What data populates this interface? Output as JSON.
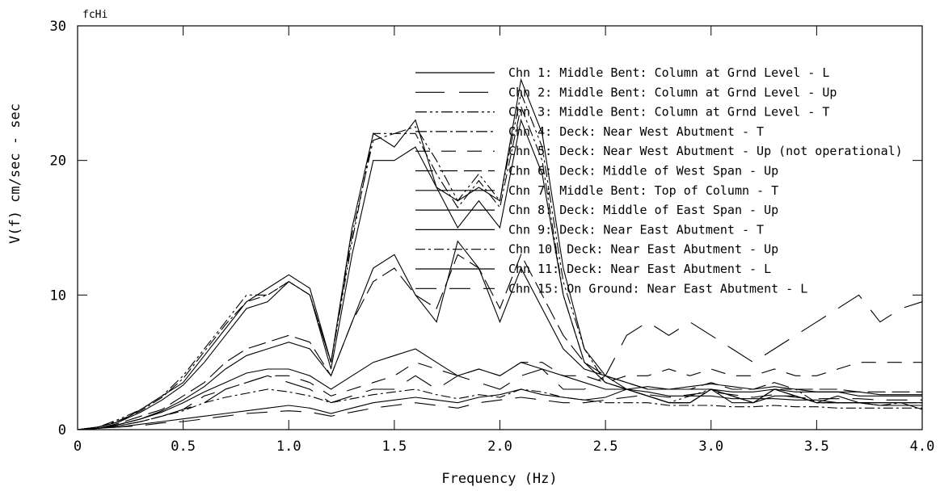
{
  "chart_data": {
    "type": "line",
    "corner_label": "fcHi",
    "xlabel": "Frequency (Hz)",
    "ylabel": "V(f)    cm/sec - sec",
    "xlim": [
      0,
      4.0
    ],
    "ylim": [
      0,
      30
    ],
    "x_ticks": [
      "0",
      "0.5",
      "1.0",
      "1.5",
      "2.0",
      "2.5",
      "3.0",
      "3.5",
      "4.0"
    ],
    "y_ticks": [
      "0",
      "10",
      "20",
      "30"
    ],
    "grid": false,
    "legend_position": "top-right",
    "x": [
      0.0,
      0.1,
      0.2,
      0.3,
      0.4,
      0.5,
      0.6,
      0.7,
      0.8,
      0.9,
      1.0,
      1.1,
      1.2,
      1.3,
      1.4,
      1.5,
      1.6,
      1.7,
      1.8,
      1.9,
      2.0,
      2.1,
      2.2,
      2.3,
      2.4,
      2.5,
      2.6,
      2.7,
      2.8,
      2.9,
      3.0,
      3.1,
      3.2,
      3.3,
      3.4,
      3.5,
      3.6,
      3.7,
      3.8,
      3.9,
      4.0
    ],
    "series": [
      {
        "name": "Chn 1: Middle Bent: Column at Grnd Level - L",
        "dash": "",
        "values": [
          0,
          0.2,
          0.6,
          1.5,
          2.5,
          3.5,
          5.5,
          7.5,
          9.5,
          10.5,
          11.5,
          10.5,
          5,
          15,
          22,
          21,
          23,
          18,
          17,
          18,
          17,
          26,
          22,
          12,
          6,
          4,
          3,
          2.5,
          2,
          2,
          3,
          2.5,
          2,
          3,
          2.5,
          2,
          2.5,
          2,
          2,
          2,
          1.5
        ]
      },
      {
        "name": "Chn 2: Middle Bent: Column at Grnd Level - Up",
        "dash": "36,18",
        "values": [
          0,
          0.1,
          0.3,
          0.6,
          1,
          1.5,
          2,
          3,
          3.5,
          4,
          3.5,
          3,
          2,
          2.5,
          3,
          3,
          4,
          3,
          4,
          3.5,
          3,
          4,
          4.5,
          3,
          3,
          4,
          7,
          8,
          7,
          8,
          7,
          6,
          5,
          6,
          7,
          8,
          9,
          10,
          8,
          9,
          9.5
        ]
      },
      {
        "name": "Chn 3: Middle Bent: Column at Grnd Level - T",
        "dash": "14,4,3,4,3,4",
        "values": [
          0,
          0.2,
          0.8,
          1.5,
          2.5,
          4,
          6,
          8,
          10,
          10,
          11,
          10,
          5,
          14,
          22,
          22,
          22.5,
          20,
          17,
          19,
          17,
          25,
          21,
          11,
          6,
          3.5,
          3,
          2.5,
          2,
          2.5,
          3,
          2.5,
          2,
          3,
          3,
          2,
          2,
          2,
          1.8,
          2,
          2
        ]
      },
      {
        "name": "Chn 4: Deck: Near West Abutment - T",
        "dash": "14,4,3,4",
        "values": [
          0,
          0.2,
          0.7,
          1.4,
          2.4,
          3.8,
          5.8,
          7.8,
          9.5,
          10,
          11,
          10,
          5,
          14.5,
          21.5,
          22,
          22,
          19,
          16.5,
          18.5,
          16.5,
          24,
          20,
          10,
          5,
          3.5,
          3,
          2.5,
          2,
          2,
          3,
          2.5,
          2,
          3,
          2.5,
          2,
          2,
          2,
          1.8,
          1.8,
          1.8
        ]
      },
      {
        "name": "Chn 5: Deck: Near West Abutment - Up (not operational)",
        "dash": "18,14",
        "values": [
          0,
          0.1,
          0.3,
          0.6,
          1,
          1.5,
          2.5,
          3,
          3.5,
          4,
          4,
          3.5,
          2.5,
          3,
          3.5,
          4,
          5,
          4.5,
          4,
          4.5,
          4,
          5,
          5,
          4,
          4,
          3.5,
          4,
          4,
          4.5,
          4,
          4.5,
          4,
          4,
          4.5,
          4,
          4,
          4.5,
          5,
          5,
          5,
          5
        ]
      },
      {
        "name": "Chn 6: Deck: Middle of West Span - Up",
        "dash": "22,8",
        "values": [
          0,
          0.1,
          0.5,
          1,
          1.5,
          2.5,
          3.5,
          5,
          6,
          6.5,
          7,
          6.5,
          4,
          8,
          11,
          12,
          10,
          9,
          13,
          12,
          9,
          13,
          10,
          7,
          5,
          4,
          3.5,
          3,
          3,
          3,
          3.5,
          3,
          3,
          3.5,
          3,
          3,
          3,
          2.8,
          2.8,
          2.8,
          2.8
        ]
      },
      {
        "name": "Chn 7: Middle Bent: Top of Column - T",
        "dash": "",
        "values": [
          0,
          0.2,
          0.6,
          1.3,
          2.2,
          3.3,
          5,
          7,
          9,
          9.5,
          11,
          10,
          4.5,
          13,
          20,
          20,
          21,
          18,
          15,
          17,
          15,
          23,
          19,
          10,
          5,
          3.5,
          3,
          2.5,
          2,
          2,
          3,
          2,
          2,
          2.5,
          2.5,
          2,
          2,
          2,
          1.8,
          1.8,
          1.8
        ]
      },
      {
        "name": "Chn 8: Deck: Middle of East Span - Up",
        "dash": "",
        "values": [
          0,
          0.1,
          0.4,
          0.8,
          1.4,
          2.2,
          3.2,
          4.5,
          5.5,
          6,
          6.5,
          6,
          4,
          8,
          12,
          13,
          10,
          8,
          14,
          12,
          8,
          12,
          9,
          6,
          4.5,
          4,
          3.5,
          3,
          3,
          3,
          3,
          2.8,
          2.8,
          3,
          2.8,
          2.8,
          2.8,
          2.5,
          2.5,
          2.5,
          2.5
        ]
      },
      {
        "name": "Chn 9: Deck: Near East Abutment - T",
        "dash": "",
        "values": [
          0,
          0.1,
          0.4,
          0.8,
          1.3,
          2,
          2.8,
          3.5,
          4.2,
          4.5,
          4.5,
          4,
          3,
          4,
          5,
          5.5,
          6,
          5,
          4,
          4.5,
          4,
          5,
          4.5,
          4,
          3.5,
          3,
          3,
          2.8,
          2.5,
          2.5,
          2.5,
          2.3,
          2.3,
          2.3,
          2.2,
          2.2,
          2,
          2,
          2,
          2,
          2
        ]
      },
      {
        "name": "Chn 10: Deck: Near East Abutment - Up",
        "dash": "12,4,3,4",
        "values": [
          0,
          0.1,
          0.3,
          0.6,
          1,
          1.4,
          2,
          2.4,
          2.7,
          3,
          2.8,
          2.5,
          2,
          2.3,
          2.6,
          2.8,
          3,
          2.6,
          2.3,
          2.6,
          2.4,
          3,
          2.8,
          2.4,
          2.2,
          2,
          2,
          2,
          1.8,
          1.8,
          1.8,
          1.7,
          1.7,
          1.8,
          1.7,
          1.7,
          1.6,
          1.6,
          1.6,
          1.6,
          1.6
        ]
      },
      {
        "name": "Chn 11: Deck: Near East Abutment - L",
        "dash": "",
        "values": [
          0,
          0.1,
          0.2,
          0.4,
          0.6,
          0.8,
          1,
          1.2,
          1.4,
          1.6,
          1.8,
          1.6,
          1.2,
          1.6,
          2,
          2.2,
          2.4,
          2.2,
          2,
          2.4,
          2.6,
          3,
          2.6,
          2.4,
          2.2,
          2.4,
          3,
          3.2,
          3,
          3.2,
          3.4,
          3.2,
          3,
          3.2,
          3,
          2.8,
          2.8,
          2.8,
          2.6,
          2.6,
          2.6
        ]
      },
      {
        "name": "Chn 15: On Ground: Near East Abutment - L",
        "dash": "26,16",
        "values": [
          0,
          0.1,
          0.2,
          0.3,
          0.5,
          0.6,
          0.8,
          1,
          1.2,
          1.3,
          1.4,
          1.3,
          1,
          1.3,
          1.6,
          1.8,
          2,
          1.8,
          1.6,
          2,
          2.2,
          2.4,
          2.2,
          2,
          2,
          2.2,
          2.4,
          2.6,
          2.4,
          2.6,
          2.8,
          2.6,
          2.4,
          2.6,
          2.4,
          2.3,
          2.3,
          2.3,
          2.2,
          2.2,
          2.2
        ]
      }
    ]
  }
}
